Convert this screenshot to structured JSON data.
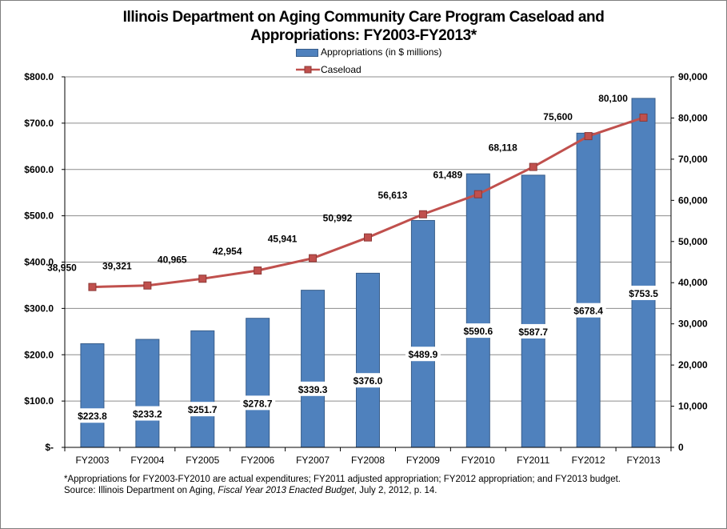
{
  "chart_data": {
    "type": "bar+line",
    "title_lines": [
      "Illinois Department on Aging Community Care Program Caseload and",
      "Appropriations: FY2003-FY2013*"
    ],
    "categories": [
      "FY2003",
      "FY2004",
      "FY2005",
      "FY2006",
      "FY2007",
      "FY2008",
      "FY2009",
      "FY2010",
      "FY2011",
      "FY2012",
      "FY2013"
    ],
    "series": [
      {
        "name": "Appropriations (in $ millions)",
        "type": "bar",
        "axis": "left",
        "color": "#4f81bd",
        "values": [
          223.8,
          233.2,
          251.7,
          278.7,
          339.3,
          376.0,
          489.9,
          590.6,
          587.7,
          678.4,
          753.5
        ],
        "labels": [
          "$223.8",
          "$233.2",
          "$251.7",
          "$278.7",
          "$339.3",
          "$376.0",
          "$489.9",
          "$590.6",
          "$587.7",
          "$678.4",
          "$753.5"
        ]
      },
      {
        "name": "Caseload",
        "type": "line",
        "axis": "right",
        "color": "#c0504d",
        "values": [
          38950,
          39321,
          40965,
          42954,
          45941,
          50992,
          56613,
          61489,
          68118,
          75600,
          80100
        ],
        "labels": [
          "38,950",
          "39,321",
          "40,965",
          "42,954",
          "45,941",
          "50,992",
          "56,613",
          "61,489",
          "68,118",
          "75,600",
          "80,100"
        ]
      }
    ],
    "y_left": {
      "min": 0,
      "max": 800,
      "ticks": [
        0,
        100,
        200,
        300,
        400,
        500,
        600,
        700,
        800
      ],
      "tick_labels": [
        "$-",
        "$100.0",
        "$200.0",
        "$300.0",
        "$400.0",
        "$500.0",
        "$600.0",
        "$700.0",
        "$800.0"
      ]
    },
    "y_right": {
      "min": 0,
      "max": 90000,
      "ticks": [
        0,
        10000,
        20000,
        30000,
        40000,
        50000,
        60000,
        70000,
        80000,
        90000
      ],
      "tick_labels": [
        "0",
        "10,000",
        "20,000",
        "30,000",
        "40,000",
        "50,000",
        "60,000",
        "70,000",
        "80,000",
        "90,000"
      ]
    },
    "grid": true,
    "legend_position": "top"
  },
  "legend": {
    "bar_label": "Appropriations (in $ millions)",
    "line_label": "Caseload"
  },
  "notes": {
    "footnote": "*Appropriations for FY2003-FY2010 are actual expenditures; FY2011 adjusted appropriation; FY2012 appropriation; and FY2013 budget.",
    "source_prefix": "Source: Illinois Department on Aging, ",
    "source_italic": "Fiscal Year 2013 Enacted Budget",
    "source_suffix": ", July 2, 2012, p. 14."
  }
}
